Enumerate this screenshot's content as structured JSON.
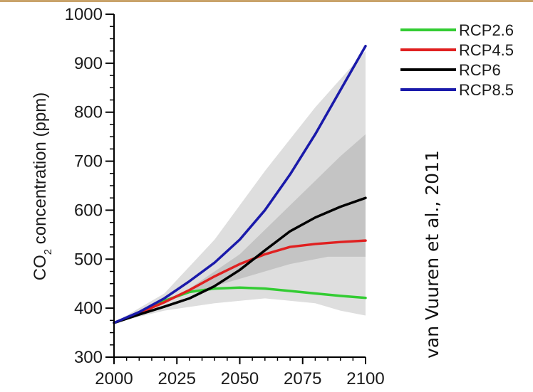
{
  "chart_data": {
    "type": "line",
    "ylabel_main": "CO",
    "ylabel_sub": "2",
    "ylabel_rest": " concentration (ppm)",
    "xlim": [
      2000,
      2100
    ],
    "ylim": [
      300,
      1000
    ],
    "xticks": [
      2000,
      2025,
      2050,
      2075,
      2100
    ],
    "yticks": [
      300,
      400,
      500,
      600,
      700,
      800,
      900,
      1000
    ],
    "xtick_labels": [
      "2000",
      "2025",
      "2050",
      "2075",
      "2100"
    ],
    "ytick_labels": [
      "300",
      "400",
      "500",
      "600",
      "700",
      "800",
      "900",
      "1000"
    ],
    "grid": false,
    "legend_position": "top-right",
    "bands": [
      {
        "color": "#dedede",
        "upper": [
          [
            2000,
            370
          ],
          [
            2020,
            430
          ],
          [
            2040,
            540
          ],
          [
            2060,
            680
          ],
          [
            2080,
            810
          ],
          [
            2100,
            925
          ]
        ],
        "lower": [
          [
            2100,
            385
          ],
          [
            2090,
            395
          ],
          [
            2080,
            410
          ],
          [
            2060,
            420
          ],
          [
            2040,
            410
          ],
          [
            2020,
            395
          ],
          [
            2000,
            370
          ]
        ]
      },
      {
        "color": "#c4c4c4",
        "upper": [
          [
            2030,
            440
          ],
          [
            2050,
            510
          ],
          [
            2070,
            610
          ],
          [
            2090,
            710
          ],
          [
            2100,
            755
          ]
        ],
        "lower": [
          [
            2100,
            505
          ],
          [
            2085,
            505
          ],
          [
            2070,
            490
          ],
          [
            2050,
            460
          ],
          [
            2030,
            430
          ]
        ]
      }
    ],
    "series": [
      {
        "name": "RCP2.6",
        "color": "#33cc33",
        "x": [
          2000,
          2010,
          2020,
          2030,
          2040,
          2050,
          2060,
          2070,
          2080,
          2090,
          2100
        ],
        "y": [
          370,
          390,
          415,
          433,
          440,
          442,
          440,
          435,
          430,
          425,
          421
        ]
      },
      {
        "name": "RCP4.5",
        "color": "#e02020",
        "x": [
          2000,
          2010,
          2020,
          2030,
          2040,
          2050,
          2060,
          2070,
          2080,
          2090,
          2100
        ],
        "y": [
          370,
          390,
          412,
          437,
          465,
          490,
          510,
          525,
          531,
          535,
          538
        ]
      },
      {
        "name": "RCP6",
        "color": "#000000",
        "x": [
          2000,
          2010,
          2020,
          2030,
          2040,
          2050,
          2060,
          2070,
          2080,
          2090,
          2100
        ],
        "y": [
          370,
          387,
          403,
          420,
          445,
          478,
          518,
          557,
          585,
          607,
          625
        ]
      },
      {
        "name": "RCP8.5",
        "color": "#1a1aaa",
        "x": [
          2000,
          2010,
          2020,
          2030,
          2040,
          2050,
          2060,
          2070,
          2080,
          2090,
          2100
        ],
        "y": [
          370,
          392,
          420,
          455,
          493,
          540,
          600,
          673,
          755,
          845,
          935
        ]
      }
    ]
  },
  "credit": "van Vuuren et al., 2011"
}
